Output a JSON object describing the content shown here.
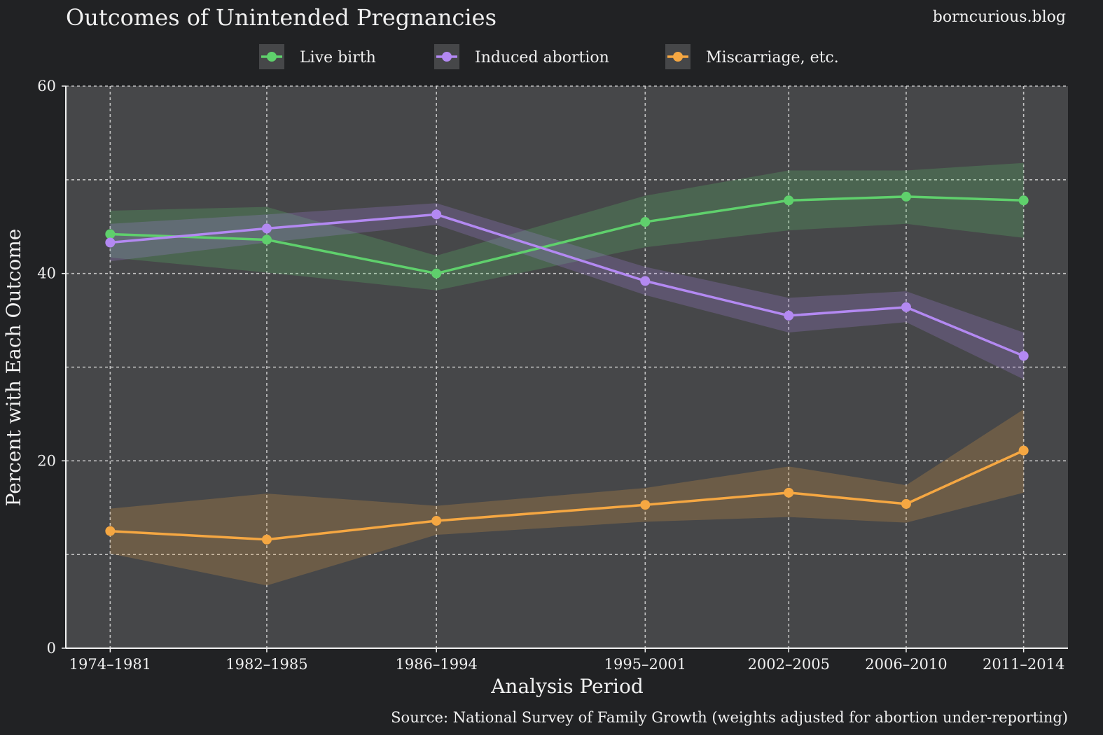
{
  "chart_data": {
    "type": "line",
    "title": "Outcomes of Unintended Pregnancies",
    "watermark": "borncurious.blog",
    "xlabel": "Analysis Period",
    "ylabel": "Percent with Each Outcome",
    "source": "Source: National Survey of Family Growth (weights adjusted for abortion under-reporting)",
    "x_tick_labels": [
      "1974–1981",
      "1982–1985",
      "1986–1994",
      "1995–2001",
      "2002–2005",
      "2006–2010",
      "2011–2014"
    ],
    "x_midpoints": [
      1977.5,
      1983.5,
      1990,
      1998,
      2003.5,
      2008,
      2012.5
    ],
    "xlim": [
      1975.8,
      2014.2
    ],
    "ylim": [
      0,
      60
    ],
    "y_ticks": [
      0,
      20,
      40,
      60
    ],
    "grid": true,
    "legend_position": "top-center",
    "series": [
      {
        "name": "Live birth",
        "color": "#5fd06c",
        "values": [
          44.2,
          43.6,
          40.0,
          45.5,
          47.8,
          48.2,
          47.8
        ],
        "lower": [
          41.7,
          40.1,
          38.2,
          42.8,
          44.6,
          45.3,
          43.8
        ],
        "upper": [
          46.7,
          47.1,
          41.9,
          48.3,
          51.0,
          51.0,
          51.8
        ]
      },
      {
        "name": "Induced abortion",
        "color": "#b389f2",
        "values": [
          43.3,
          44.8,
          46.3,
          39.2,
          35.5,
          36.4,
          31.2
        ],
        "lower": [
          41.3,
          43.3,
          45.2,
          37.7,
          33.7,
          34.8,
          28.7
        ],
        "upper": [
          45.3,
          46.3,
          47.5,
          40.7,
          37.4,
          38.1,
          33.7
        ]
      },
      {
        "name": "Miscarriage, etc.",
        "color": "#f5a742",
        "values": [
          12.5,
          11.6,
          13.6,
          15.3,
          16.6,
          15.4,
          21.1
        ],
        "lower": [
          10.1,
          6.7,
          12.1,
          13.5,
          14.0,
          13.4,
          16.6
        ],
        "upper": [
          14.9,
          16.5,
          15.2,
          17.1,
          19.4,
          17.4,
          25.5
        ]
      }
    ]
  }
}
